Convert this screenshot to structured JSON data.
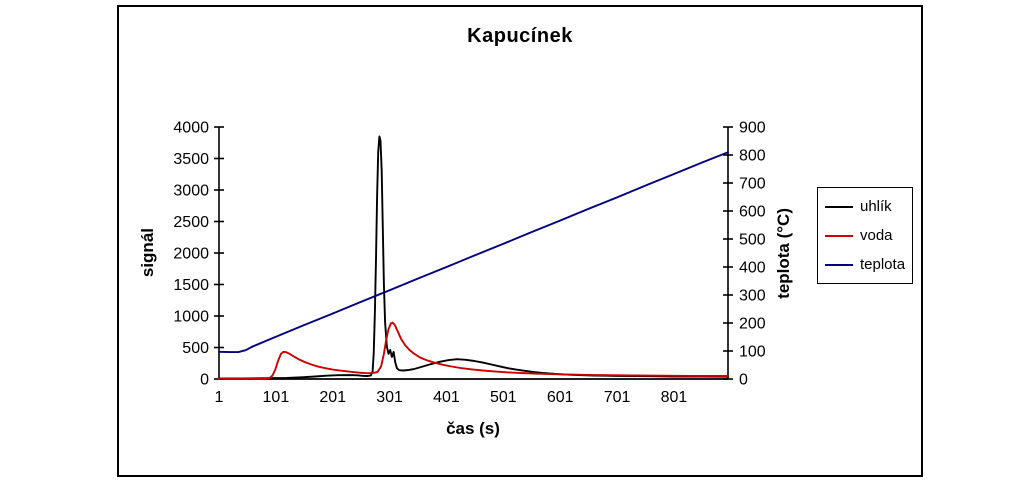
{
  "chart_data": {
    "type": "line",
    "title": "Kapucínek",
    "x_axis": {
      "label": "čas (s)",
      "ticks": [
        1,
        101,
        201,
        301,
        401,
        501,
        601,
        701,
        801
      ],
      "range": [
        1,
        896
      ]
    },
    "y_left": {
      "label": "signál",
      "ticks": [
        0,
        500,
        1000,
        1500,
        2000,
        2500,
        3000,
        3500,
        4000
      ],
      "range": [
        0,
        4000
      ]
    },
    "y_right": {
      "label": "teplota (°C)",
      "ticks": [
        0,
        100,
        200,
        300,
        400,
        500,
        600,
        700,
        800,
        900
      ],
      "range": [
        0,
        900
      ]
    },
    "legend": {
      "position": "right"
    },
    "series": [
      {
        "name": "uhlík",
        "color": "#000000",
        "axis": "left",
        "points": [
          [
            1,
            8
          ],
          [
            40,
            10
          ],
          [
            80,
            12
          ],
          [
            120,
            18
          ],
          [
            150,
            28
          ],
          [
            170,
            40
          ],
          [
            190,
            52
          ],
          [
            210,
            60
          ],
          [
            230,
            62
          ],
          [
            245,
            58
          ],
          [
            255,
            50
          ],
          [
            263,
            48
          ],
          [
            268,
            55
          ],
          [
            271,
            120
          ],
          [
            273,
            400
          ],
          [
            275,
            1000
          ],
          [
            277,
            1900
          ],
          [
            279,
            2900
          ],
          [
            281,
            3600
          ],
          [
            283,
            3850
          ],
          [
            285,
            3780
          ],
          [
            287,
            3300
          ],
          [
            289,
            2400
          ],
          [
            291,
            1500
          ],
          [
            293,
            900
          ],
          [
            296,
            520
          ],
          [
            299,
            400
          ],
          [
            302,
            460
          ],
          [
            305,
            350
          ],
          [
            308,
            430
          ],
          [
            311,
            260
          ],
          [
            314,
            170
          ],
          [
            318,
            140
          ],
          [
            325,
            135
          ],
          [
            335,
            145
          ],
          [
            345,
            160
          ],
          [
            360,
            200
          ],
          [
            375,
            240
          ],
          [
            390,
            275
          ],
          [
            405,
            300
          ],
          [
            420,
            315
          ],
          [
            435,
            305
          ],
          [
            450,
            285
          ],
          [
            465,
            260
          ],
          [
            480,
            230
          ],
          [
            495,
            200
          ],
          [
            510,
            170
          ],
          [
            525,
            148
          ],
          [
            540,
            128
          ],
          [
            555,
            110
          ],
          [
            570,
            96
          ],
          [
            585,
            85
          ],
          [
            600,
            76
          ],
          [
            620,
            66
          ],
          [
            640,
            60
          ],
          [
            660,
            56
          ],
          [
            680,
            52
          ],
          [
            700,
            50
          ],
          [
            730,
            46
          ],
          [
            760,
            44
          ],
          [
            800,
            40
          ],
          [
            850,
            38
          ],
          [
            896,
            36
          ]
        ]
      },
      {
        "name": "voda",
        "color": "#cc0000",
        "axis": "left",
        "points": [
          [
            1,
            5
          ],
          [
            50,
            5
          ],
          [
            80,
            6
          ],
          [
            90,
            15
          ],
          [
            95,
            55
          ],
          [
            100,
            150
          ],
          [
            105,
            290
          ],
          [
            110,
            400
          ],
          [
            114,
            430
          ],
          [
            118,
            428
          ],
          [
            124,
            405
          ],
          [
            132,
            360
          ],
          [
            142,
            310
          ],
          [
            152,
            268
          ],
          [
            164,
            228
          ],
          [
            176,
            196
          ],
          [
            190,
            168
          ],
          [
            205,
            145
          ],
          [
            220,
            128
          ],
          [
            235,
            112
          ],
          [
            248,
            100
          ],
          [
            258,
            94
          ],
          [
            266,
            92
          ],
          [
            274,
            98
          ],
          [
            280,
            115
          ],
          [
            286,
            200
          ],
          [
            291,
            400
          ],
          [
            295,
            620
          ],
          [
            299,
            790
          ],
          [
            303,
            880
          ],
          [
            306,
            895
          ],
          [
            310,
            860
          ],
          [
            315,
            760
          ],
          [
            321,
            640
          ],
          [
            328,
            540
          ],
          [
            336,
            460
          ],
          [
            345,
            395
          ],
          [
            355,
            340
          ],
          [
            367,
            295
          ],
          [
            380,
            258
          ],
          [
            395,
            225
          ],
          [
            410,
            198
          ],
          [
            428,
            172
          ],
          [
            446,
            152
          ],
          [
            465,
            135
          ],
          [
            485,
            120
          ],
          [
            510,
            105
          ],
          [
            535,
            93
          ],
          [
            560,
            84
          ],
          [
            590,
            76
          ],
          [
            620,
            70
          ],
          [
            650,
            65
          ],
          [
            690,
            60
          ],
          [
            730,
            56
          ],
          [
            780,
            52
          ],
          [
            830,
            50
          ],
          [
            896,
            48
          ]
        ]
      },
      {
        "name": "teplota",
        "color": "#000080",
        "axis": "right",
        "points": [
          [
            1,
            97
          ],
          [
            20,
            96
          ],
          [
            35,
            96
          ],
          [
            48,
            103
          ],
          [
            60,
            116
          ],
          [
            100,
            150
          ],
          [
            150,
            192
          ],
          [
            200,
            233
          ],
          [
            250,
            275
          ],
          [
            300,
            316
          ],
          [
            350,
            358
          ],
          [
            400,
            399
          ],
          [
            450,
            441
          ],
          [
            500,
            482
          ],
          [
            550,
            524
          ],
          [
            600,
            565
          ],
          [
            650,
            607
          ],
          [
            700,
            648
          ],
          [
            750,
            690
          ],
          [
            800,
            731
          ],
          [
            850,
            773
          ],
          [
            896,
            810
          ]
        ]
      }
    ]
  },
  "colors": {
    "axis": "#000000",
    "background": "#ffffff",
    "frame_border": "#000000"
  }
}
